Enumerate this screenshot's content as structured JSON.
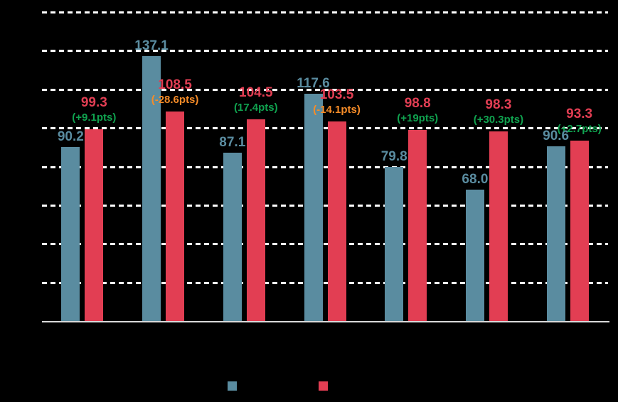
{
  "colors": {
    "background": "#000000",
    "series1_bar": "#5a8ca0",
    "series2_bar": "#e23e53",
    "series1_label": "#5a8ca0",
    "series2_label": "#e23e53",
    "delta_positive": "#10a24f",
    "delta_negative": "#f68c28",
    "gridline": "#ffffff",
    "axis_line": "#d9d9d9"
  },
  "chart_data": {
    "type": "bar",
    "grouping": "paired",
    "num_groups": 7,
    "series": [
      {
        "name": "series-1-teal",
        "color": "#5a8ca0",
        "values": [
          90.2,
          137.1,
          87.1,
          117.6,
          79.8,
          68.0,
          90.6
        ]
      },
      {
        "name": "series-2-red",
        "color": "#e23e53",
        "values": [
          99.3,
          108.5,
          104.5,
          103.5,
          98.8,
          98.3,
          93.3
        ]
      }
    ],
    "value_labels_series1": [
      "90.2",
      "137.1",
      "87.1",
      "117.6",
      "79.8",
      "68.0",
      "90.6"
    ],
    "value_labels_series2": [
      "99.3",
      "108.5",
      "104.5",
      "103.5",
      "98.8",
      "98.3",
      "93.3"
    ],
    "delta_labels": [
      "(+9.1pts)",
      "(-28.6pts)",
      "(17.4pts)",
      "(-14.1pts)",
      "(+19pts)",
      "(+30.3pts)",
      "(+2.7pts)"
    ],
    "delta_signs": [
      "positive",
      "negative",
      "positive",
      "negative",
      "positive",
      "positive",
      "positive"
    ],
    "ylim": [
      0,
      160
    ],
    "gridline_interval": 20,
    "gridline_style": "white dashed horizontal",
    "x_axis_line": "solid light gray",
    "legend_position": "bottom-center",
    "legend": [
      {
        "swatch_color": "#5a8ca0"
      },
      {
        "swatch_color": "#e23e53"
      }
    ]
  }
}
